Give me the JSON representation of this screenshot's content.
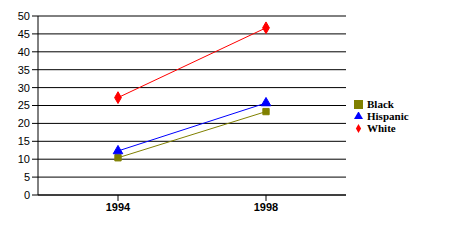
{
  "chart_data": {
    "type": "line",
    "categories": [
      "1994",
      "1998"
    ],
    "series": [
      {
        "name": "White",
        "color": "#ff0000",
        "marker": "diamond",
        "values": [
          27.2,
          46.7
        ]
      },
      {
        "name": "Black",
        "color": "#808000",
        "marker": "square",
        "values": [
          10.4,
          23.3
        ]
      },
      {
        "name": "Hispanic",
        "color": "#0000ff",
        "marker": "triangle",
        "values": [
          12.3,
          25.7
        ]
      }
    ],
    "ylim": [
      0,
      50
    ],
    "yticks": [
      0,
      5,
      10,
      15,
      20,
      25,
      30,
      35,
      40,
      45,
      50
    ],
    "grid": true,
    "legend": "right"
  }
}
